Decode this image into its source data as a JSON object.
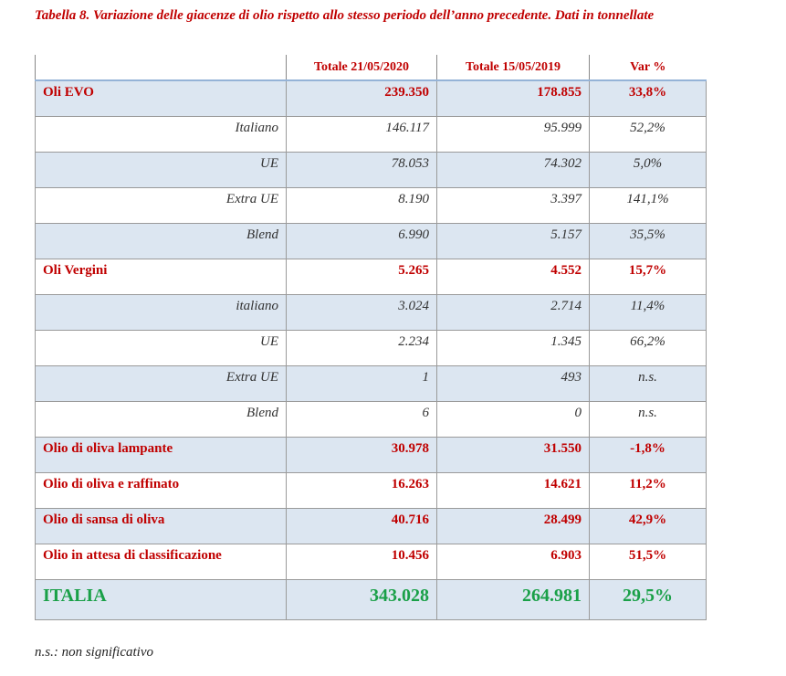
{
  "header": {
    "title": "Tabella 8. Variazione delle giacenze di olio rispetto allo stesso periodo dell’anno precedente. Dati in tonnellate"
  },
  "table": {
    "columns": [
      "Totale 21/05/2020",
      "Totale 15/05/2019",
      "Var %"
    ],
    "rows": [
      [
        "Oli EVO",
        "239.350",
        "178.855",
        "33,8%"
      ],
      [
        "Italiano",
        "146.117",
        "95.999",
        "52,2%"
      ],
      [
        "UE",
        "78.053",
        "74.302",
        "5,0%"
      ],
      [
        "Extra UE",
        "8.190",
        "3.397",
        "141,1%"
      ],
      [
        "Blend",
        "6.990",
        "5.157",
        "35,5%"
      ],
      [
        "Oli Vergini",
        "5.265",
        "4.552",
        "15,7%"
      ],
      [
        "italiano",
        "3.024",
        "2.714",
        "11,4%"
      ],
      [
        "UE",
        "2.234",
        "1.345",
        "66,2%"
      ],
      [
        "Extra UE",
        "1",
        "493",
        "n.s."
      ],
      [
        "Blend",
        "6",
        "0",
        "n.s."
      ],
      [
        "Olio di oliva lampante",
        "30.978",
        "31.550",
        "-1,8%"
      ],
      [
        "Olio di oliva e raffinato",
        "16.263",
        "14.621",
        "11,2%"
      ],
      [
        "Olio di sansa di oliva",
        "40.716",
        "28.499",
        "42,9%"
      ],
      [
        "Olio in attesa di classificazione",
        "10.456",
        "6.903",
        "51,5%"
      ],
      [
        "ITALIA",
        "343.028",
        "264.981",
        "29,5%"
      ]
    ]
  },
  "footer": {
    "note": "n.s.: non significativo"
  }
}
